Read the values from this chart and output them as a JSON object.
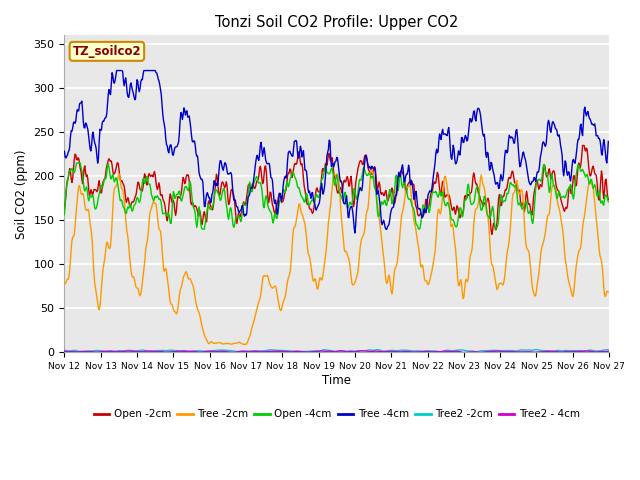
{
  "title": "Tonzi Soil CO2 Profile: Upper CO2",
  "ylabel": "Soil CO2 (ppm)",
  "xlabel": "Time",
  "text_box": "TZ_soilco2",
  "ylim": [
    0,
    360
  ],
  "yticks": [
    0,
    50,
    100,
    150,
    200,
    250,
    300,
    350
  ],
  "bg_color": "#ffffff",
  "plot_bg_color": "#e8e8e8",
  "grid_color": "#ffffff",
  "series_colors": {
    "Open -2cm": "#cc0000",
    "Tree -2cm": "#ff9900",
    "Open -4cm": "#00cc00",
    "Tree -4cm": "#0000cc",
    "Tree2 -2cm": "#00cccc",
    "Tree2 - 4cm": "#cc00cc"
  }
}
